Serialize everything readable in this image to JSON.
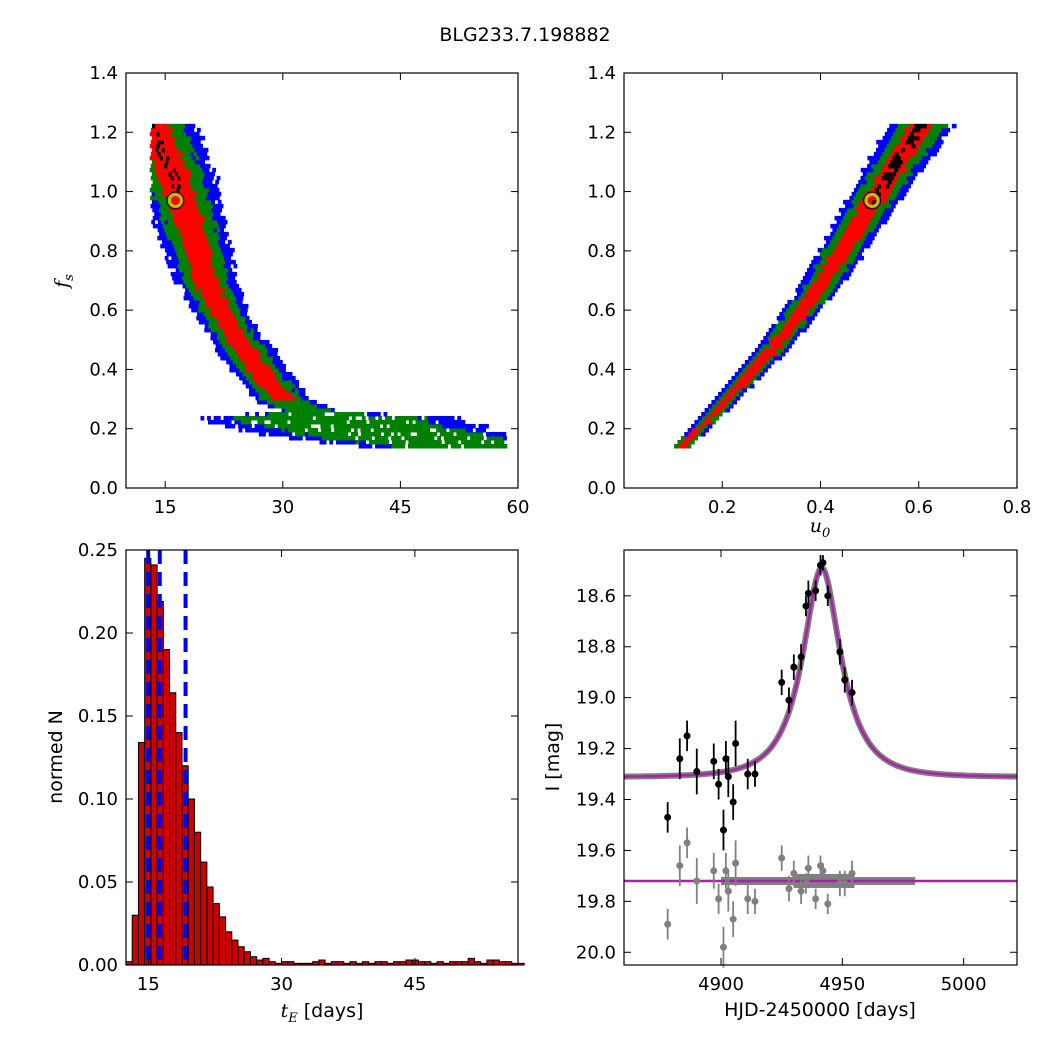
{
  "figure": {
    "title": "BLG233.7.198882"
  },
  "colors": {
    "blue": "#0000ff",
    "green": "#008000",
    "red": "#ff0000",
    "black": "#000000",
    "yellow_marker": "#bfbf00",
    "model_purple": "#aa22aa",
    "model_gray": "#808080",
    "hist_fill": "#cc0000"
  },
  "chart_data": [
    {
      "id": "tE_fs",
      "type": "heatmap",
      "xlabel": "",
      "ylabel": "f_s",
      "xlim": [
        10,
        60
      ],
      "ylim": [
        0.0,
        1.4
      ],
      "xticks": [
        "15",
        "30",
        "45",
        "60"
      ],
      "yticks": [
        "0.0",
        "0.2",
        "0.4",
        "0.6",
        "0.8",
        "1.0",
        "1.2",
        "1.4"
      ],
      "ridge": [
        [
          13,
          1.23
        ],
        [
          16,
          1.05
        ],
        [
          18,
          0.9
        ],
        [
          20,
          0.7
        ],
        [
          23,
          0.55
        ],
        [
          26,
          0.43
        ],
        [
          30,
          0.3
        ],
        [
          37,
          0.23
        ],
        [
          45,
          0.18
        ],
        [
          52,
          0.16
        ],
        [
          58,
          0.14
        ]
      ],
      "best_fit": {
        "x": 16.3,
        "y": 0.97
      }
    },
    {
      "id": "u0_fs",
      "type": "heatmap",
      "xlabel": "u_0",
      "ylabel": "",
      "xlim": [
        0.0,
        0.8
      ],
      "ylim": [
        0.0,
        1.4
      ],
      "xticks": [
        "0.2",
        "0.4",
        "0.6",
        "0.8"
      ],
      "yticks": [
        "0.0",
        "0.2",
        "0.4",
        "0.6",
        "0.8",
        "1.0",
        "1.2",
        "1.4"
      ],
      "ridge": [
        [
          0.11,
          0.14
        ],
        [
          0.2,
          0.3
        ],
        [
          0.3,
          0.48
        ],
        [
          0.4,
          0.7
        ],
        [
          0.5,
          0.97
        ],
        [
          0.6,
          1.23
        ]
      ],
      "best_fit": {
        "x": 0.505,
        "y": 0.97
      }
    },
    {
      "id": "tE_hist",
      "type": "bar",
      "xlabel": "t_E [days]",
      "ylabel": "normed N",
      "xlim": [
        12.5,
        56.6
      ],
      "ylim": [
        0.0,
        0.25
      ],
      "xticks": [
        "15",
        "30",
        "45"
      ],
      "yticks": [
        "0.00",
        "0.05",
        "0.10",
        "0.15",
        "0.20",
        "0.25"
      ],
      "bin_start": 12.5,
      "bin_width": 0.7,
      "values": [
        0.002,
        0.03,
        0.134,
        0.245,
        0.241,
        0.219,
        0.19,
        0.164,
        0.14,
        0.12,
        0.1,
        0.08,
        0.062,
        0.047,
        0.037,
        0.029,
        0.02,
        0.015,
        0.011,
        0.008,
        0.005,
        0.003,
        0.004,
        0.002,
        0.001,
        0.002,
        0.002,
        0.001,
        0.001,
        0.001,
        0.002,
        0.003,
        0.001,
        0.002,
        0.002,
        0.001,
        0.002,
        0.001,
        0.002,
        0.001,
        0.002,
        0.002,
        0.001,
        0.002,
        0.002,
        0.003,
        0.003,
        0.002,
        0.002,
        0.001,
        0.002,
        0.001,
        0.002,
        0.002,
        0.002,
        0.004,
        0.002,
        0.001,
        0.003,
        0.003,
        0.002,
        0.002,
        0.001,
        0.001
      ],
      "vlines": [
        15.0,
        16.3,
        19.2
      ]
    },
    {
      "id": "lightcurve",
      "type": "scatter",
      "xlabel": "HJD-2450000 [days]",
      "ylabel": "I [mag]",
      "xlim": [
        4860,
        5022
      ],
      "ylim": [
        20.05,
        18.42
      ],
      "xticks": [
        "4900",
        "4950",
        "5000"
      ],
      "yticks": [
        "18.6",
        "18.8",
        "19.0",
        "19.2",
        "19.4",
        "19.6",
        "19.8",
        "20.0"
      ],
      "model": {
        "t0": 4941.5,
        "tE": 16.3,
        "u0": 0.505,
        "base": 19.31,
        "peak": 18.49
      },
      "residual_base": 19.72,
      "data_points": [
        [
          4878,
          19.47,
          0.06
        ],
        [
          4883,
          19.24,
          0.08
        ],
        [
          4886,
          19.15,
          0.06
        ],
        [
          4890,
          19.29,
          0.09
        ],
        [
          4897,
          19.25,
          0.07
        ],
        [
          4899,
          19.34,
          0.06
        ],
        [
          4901,
          19.52,
          0.08
        ],
        [
          4902,
          19.24,
          0.07
        ],
        [
          4903,
          19.31,
          0.08
        ],
        [
          4905,
          19.41,
          0.07
        ],
        [
          4906,
          19.18,
          0.09
        ],
        [
          4911,
          19.3,
          0.06
        ],
        [
          4914,
          19.3,
          0.05
        ],
        [
          4925,
          18.94,
          0.05
        ],
        [
          4928,
          19.01,
          0.05
        ],
        [
          4930,
          18.88,
          0.05
        ],
        [
          4933,
          18.84,
          0.05
        ],
        [
          4935,
          18.64,
          0.04
        ],
        [
          4936,
          18.59,
          0.05
        ],
        [
          4939,
          18.58,
          0.04
        ],
        [
          4941,
          18.48,
          0.04
        ],
        [
          4942,
          18.47,
          0.03
        ],
        [
          4944,
          18.6,
          0.04
        ],
        [
          4949,
          18.82,
          0.05
        ],
        [
          4951,
          18.93,
          0.05
        ],
        [
          4954,
          18.98,
          0.05
        ]
      ],
      "residual_points": [
        [
          4878,
          19.89,
          0.06
        ],
        [
          4883,
          19.66,
          0.08
        ],
        [
          4886,
          19.57,
          0.06
        ],
        [
          4890,
          19.72,
          0.09
        ],
        [
          4897,
          19.68,
          0.07
        ],
        [
          4899,
          19.79,
          0.06
        ],
        [
          4901,
          19.98,
          0.08
        ],
        [
          4902,
          19.68,
          0.07
        ],
        [
          4903,
          19.76,
          0.08
        ],
        [
          4905,
          19.87,
          0.07
        ],
        [
          4906,
          19.65,
          0.09
        ],
        [
          4911,
          19.79,
          0.06
        ],
        [
          4914,
          19.8,
          0.05
        ],
        [
          4925,
          19.63,
          0.05
        ],
        [
          4928,
          19.75,
          0.05
        ],
        [
          4930,
          19.69,
          0.05
        ],
        [
          4933,
          19.76,
          0.05
        ],
        [
          4935,
          19.73,
          0.04
        ],
        [
          4936,
          19.67,
          0.05
        ],
        [
          4939,
          19.79,
          0.04
        ],
        [
          4941,
          19.66,
          0.04
        ],
        [
          4942,
          19.68,
          0.03
        ],
        [
          4944,
          19.81,
          0.04
        ],
        [
          4949,
          19.73,
          0.05
        ],
        [
          4951,
          19.73,
          0.05
        ],
        [
          4954,
          19.69,
          0.05
        ]
      ]
    }
  ]
}
